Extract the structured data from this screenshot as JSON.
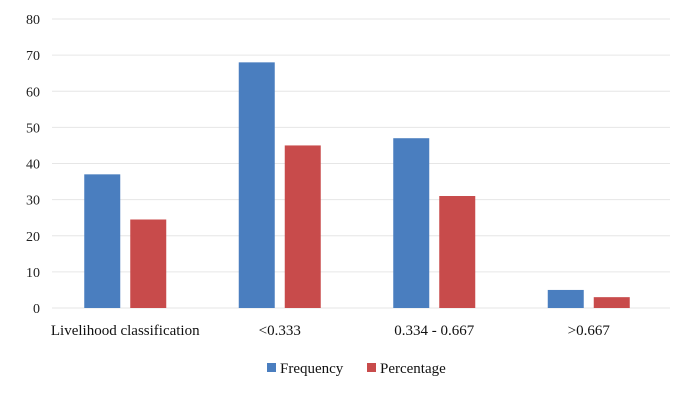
{
  "chart_data": {
    "type": "bar",
    "categories": [
      "Livelihood classification",
      "<0.333",
      "0.334 - 0.667",
      ">0.667"
    ],
    "series": [
      {
        "name": "Frequency",
        "values": [
          37,
          68,
          47,
          5
        ],
        "color": "#4a7ebf"
      },
      {
        "name": "Percentage",
        "values": [
          24.5,
          45,
          31,
          3
        ],
        "color": "#c84b4b"
      }
    ],
    "title": "",
    "xlabel": "",
    "ylabel": "",
    "ylim": [
      0,
      80
    ],
    "yticks": [
      "0",
      "10",
      "20",
      "30",
      "40",
      "50",
      "60",
      "70",
      "80"
    ],
    "grid": true,
    "legend_position": "bottom"
  }
}
